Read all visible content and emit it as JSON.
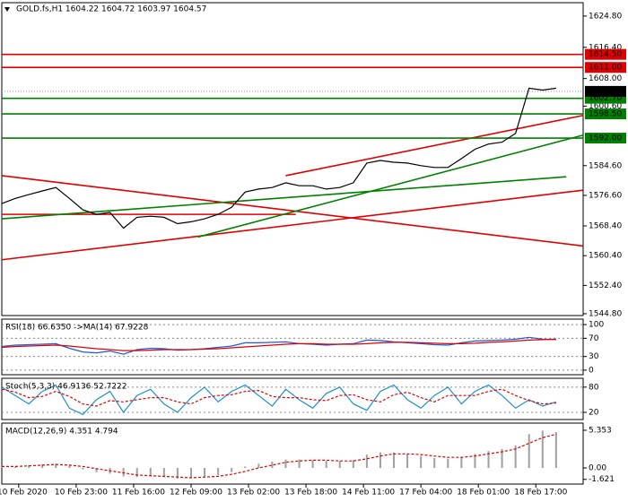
{
  "chart_data": [
    {
      "type": "line",
      "title": "GOLD.fs,H1  1604.22 1604.72 1603.97 1604.57",
      "x": [
        0,
        4,
        8,
        12,
        16,
        20,
        24,
        28,
        32,
        36,
        40,
        44,
        48,
        52,
        56,
        60,
        64,
        68,
        72,
        76,
        80,
        84,
        88,
        92,
        96,
        100,
        104,
        108,
        112,
        116,
        120,
        124,
        128,
        132,
        136,
        140,
        144,
        148,
        152,
        156,
        160,
        164
      ],
      "series": [
        {
          "color": "#000000",
          "values": [
            1574.4,
            1575.8,
            1576.8,
            1577.8,
            1578.7,
            1575.8,
            1572.7,
            1571.5,
            1572,
            1567.8,
            1570.7,
            1571,
            1570.7,
            1569,
            1569.5,
            1570.3,
            1571.5,
            1573.4,
            1577.5,
            1578.3,
            1578.7,
            1580,
            1579.2,
            1579.2,
            1578.3,
            1578.7,
            1580,
            1585.3,
            1586,
            1585.5,
            1585.3,
            1584.6,
            1584.1,
            1584.1,
            1586.5,
            1589,
            1590.4,
            1590.9,
            1593.3,
            1605.4,
            1604.9,
            1605.4
          ]
        }
      ],
      "xlim": [
        0,
        172
      ],
      "ylim": [
        1544.3,
        1628.4
      ],
      "yticks": [
        {
          "value": 1624.8,
          "label": "1624.80"
        },
        {
          "value": 1616.4,
          "label": "1616.40"
        },
        {
          "value": 1608,
          "label": "1608.00"
        },
        {
          "value": 1600.6,
          "label": "1600.60"
        },
        {
          "value": 1584.6,
          "label": "1584.60"
        },
        {
          "value": 1576.6,
          "label": "1576.60"
        },
        {
          "value": 1568.4,
          "label": "1568.40"
        },
        {
          "value": 1560.4,
          "label": "1560.40"
        },
        {
          "value": 1552.4,
          "label": "1552.40"
        },
        {
          "value": 1544.8,
          "label": "1544.80"
        }
      ],
      "levels": [
        {
          "value": 1614.5,
          "label": "1614.50",
          "color": "#e00000"
        },
        {
          "value": 1611,
          "label": "1611.00",
          "color": "#e00000"
        },
        {
          "value": 1602.7,
          "label": "1602.70",
          "color": "#008000"
        },
        {
          "value": 1598.5,
          "label": "1598.50",
          "color": "#008000"
        },
        {
          "value": 1592,
          "label": "1592.00",
          "color": "#008000"
        }
      ],
      "current": {
        "value": 1604.57,
        "label": "1604.57"
      },
      "trendlines": [
        {
          "color": "#e00000",
          "x": [
            0,
            172
          ],
          "values": [
            1581.9,
            1563.0
          ]
        },
        {
          "color": "#e00000",
          "x": [
            0,
            172
          ],
          "values": [
            1559.3,
            1578.0
          ]
        },
        {
          "color": "#e00000",
          "x": [
            84,
            172
          ],
          "values": [
            1581.9,
            1598.1
          ]
        },
        {
          "color": "#e00000",
          "x": [
            0,
            87
          ],
          "values": [
            1571.5,
            1571.5
          ]
        },
        {
          "color": "#008000",
          "x": [
            58,
            172
          ],
          "values": [
            1565.4,
            1592.8
          ]
        },
        {
          "color": "#008000",
          "x": [
            0,
            167
          ],
          "values": [
            1570.3,
            1581.6
          ]
        }
      ]
    },
    {
      "type": "line",
      "title": "RSI(18) 66.6350  ->MA(14) 67.9228",
      "x": [
        0,
        4,
        8,
        12,
        16,
        20,
        24,
        28,
        32,
        36,
        40,
        44,
        48,
        52,
        56,
        60,
        64,
        68,
        72,
        76,
        80,
        84,
        88,
        92,
        96,
        100,
        104,
        108,
        112,
        116,
        120,
        124,
        128,
        132,
        136,
        140,
        144,
        148,
        152,
        156,
        160,
        164
      ],
      "series": [
        {
          "color": "#1e5adc",
          "values": [
            52,
            55,
            56,
            57,
            58,
            48,
            40,
            38,
            42,
            35,
            45,
            48,
            47,
            44,
            45,
            47,
            50,
            53,
            60,
            60,
            61,
            62,
            58,
            57,
            55,
            57,
            58,
            66,
            65,
            62,
            60,
            58,
            56,
            55,
            60,
            64,
            65,
            66,
            68,
            72,
            68,
            67
          ]
        },
        {
          "color": "#e00000",
          "values": [
            50,
            52,
            53,
            54,
            55,
            53,
            50,
            47,
            45,
            43,
            43,
            44,
            45,
            45,
            45,
            46,
            47,
            49,
            51,
            53,
            55,
            57,
            58,
            58,
            57,
            57,
            57,
            58,
            60,
            61,
            61,
            60,
            59,
            58,
            58,
            59,
            61,
            62,
            64,
            66,
            67,
            68
          ]
        }
      ],
      "xlim": [
        0,
        172
      ],
      "ylim": [
        -10,
        112
      ],
      "yticks": [
        100,
        70,
        30,
        0
      ],
      "grid": true
    },
    {
      "type": "line",
      "title": "Stoch(5,3,3) 46.9136 52.7222",
      "x": [
        0,
        4,
        8,
        12,
        16,
        20,
        24,
        28,
        32,
        36,
        40,
        44,
        48,
        52,
        56,
        60,
        64,
        68,
        72,
        76,
        80,
        84,
        88,
        92,
        96,
        100,
        104,
        108,
        112,
        116,
        120,
        124,
        128,
        132,
        136,
        140,
        144,
        148,
        152,
        156,
        160,
        164
      ],
      "series": [
        {
          "color": "#1e90c8",
          "values": [
            80,
            60,
            40,
            70,
            85,
            30,
            15,
            50,
            70,
            20,
            60,
            75,
            40,
            20,
            55,
            80,
            45,
            70,
            85,
            60,
            35,
            75,
            50,
            30,
            65,
            80,
            40,
            25,
            70,
            85,
            50,
            30,
            60,
            80,
            40,
            70,
            85,
            60,
            30,
            50,
            35,
            45
          ]
        },
        {
          "color": "#e00000",
          "values": [
            75,
            68,
            55,
            58,
            70,
            58,
            40,
            35,
            48,
            45,
            50,
            55,
            55,
            45,
            40,
            55,
            60,
            62,
            70,
            72,
            58,
            55,
            55,
            50,
            48,
            60,
            62,
            50,
            45,
            62,
            68,
            55,
            45,
            60,
            60,
            60,
            70,
            75,
            60,
            48,
            40,
            42
          ]
        }
      ],
      "xlim": [
        0,
        172
      ],
      "ylim": [
        3,
        101
      ],
      "yticks": [
        80,
        20
      ],
      "grid": true
    },
    {
      "type": "bar",
      "title": "MACD(12,26,9) 4.351 4.794",
      "x": [
        0,
        4,
        8,
        12,
        16,
        20,
        24,
        28,
        32,
        36,
        40,
        44,
        48,
        52,
        56,
        60,
        64,
        68,
        72,
        76,
        80,
        84,
        88,
        92,
        96,
        100,
        104,
        108,
        112,
        116,
        120,
        124,
        128,
        132,
        136,
        140,
        144,
        148,
        152,
        156,
        160,
        164
      ],
      "series": [
        {
          "color": "#a0a0a0",
          "values": [
            0.3,
            0.2,
            0.4,
            0.5,
            0.6,
            0.3,
            -0.2,
            -0.6,
            -0.8,
            -1.2,
            -1.3,
            -1.2,
            -1.3,
            -1.5,
            -1.4,
            -1.3,
            -1.0,
            -0.6,
            0.2,
            0.6,
            0.9,
            1.2,
            1.2,
            1.1,
            1.0,
            1.0,
            1.1,
            1.9,
            2.2,
            2.2,
            2.0,
            1.7,
            1.4,
            1.3,
            1.6,
            2.0,
            2.4,
            2.7,
            3.2,
            4.8,
            5.3,
            5.1
          ]
        },
        {
          "color": "#e00000",
          "values": [
            0.2,
            0.2,
            0.3,
            0.4,
            0.5,
            0.4,
            0.2,
            -0.1,
            -0.4,
            -0.7,
            -1.0,
            -1.1,
            -1.2,
            -1.3,
            -1.4,
            -1.3,
            -1.2,
            -0.9,
            -0.5,
            0,
            0.4,
            0.8,
            1.0,
            1.1,
            1.1,
            1.0,
            1.0,
            1.3,
            1.7,
            2.0,
            2.0,
            1.9,
            1.7,
            1.5,
            1.5,
            1.7,
            2.0,
            2.3,
            2.7,
            3.5,
            4.3,
            4.8
          ]
        }
      ],
      "xlim": [
        0,
        172
      ],
      "ylim": [
        -2.29,
        6.37
      ],
      "yticks": [
        {
          "value": 5.353,
          "label": "5.353"
        },
        {
          "value": 0,
          "label": "0.00"
        },
        {
          "value": -1.621,
          "label": "-1.621"
        }
      ],
      "xticks": [
        {
          "value": 5,
          "label": "10 Feb 2020"
        },
        {
          "value": 22,
          "label": "10 Feb 23:00"
        },
        {
          "value": 39,
          "label": "11 Feb 16:00"
        },
        {
          "value": 56,
          "label": "12 Feb 09:00"
        },
        {
          "value": 73,
          "label": "13 Feb 02:00"
        },
        {
          "value": 90,
          "label": "13 Feb 18:00"
        },
        {
          "value": 107,
          "label": "14 Feb 11:00"
        },
        {
          "value": 124,
          "label": "17 Feb 04:00"
        },
        {
          "value": 141,
          "label": "18 Feb 01:00"
        },
        {
          "value": 158,
          "label": "18 Feb 17:00"
        }
      ]
    }
  ]
}
